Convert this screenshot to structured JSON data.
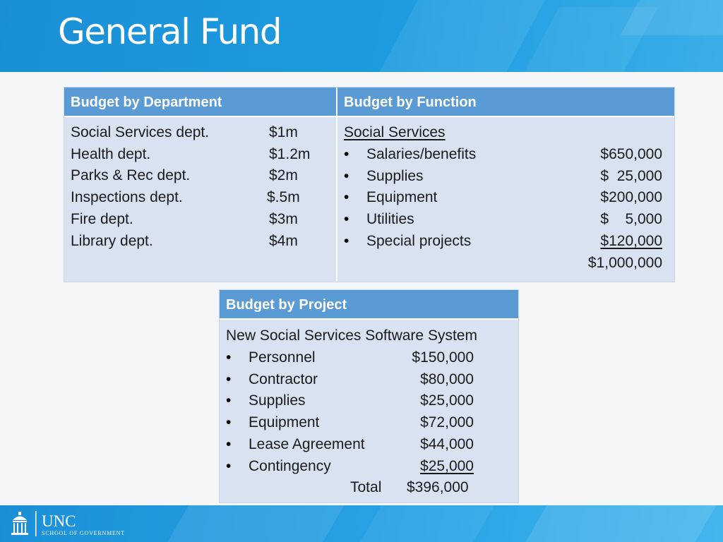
{
  "slide": {
    "title": "General Fund"
  },
  "department": {
    "header": "Budget by Department",
    "rows": [
      {
        "label": "Social Services dept.",
        "amount": "$1m"
      },
      {
        "label": "Health dept.",
        "amount": "$1.2m"
      },
      {
        "label": "Parks & Rec dept.",
        "amount": "$2m"
      },
      {
        "label": "Inspections dept.",
        "amount": "$.5m"
      },
      {
        "label": "Fire dept.",
        "amount": "$3m"
      },
      {
        "label": "Library dept.",
        "amount": "$4m"
      }
    ]
  },
  "function": {
    "header": "Budget by Function",
    "group": "Social Services",
    "bullet": "•",
    "rows": [
      {
        "label": "Salaries/benefits",
        "amount": "$650,000"
      },
      {
        "label": "Supplies",
        "amount": "$  25,000"
      },
      {
        "label": "Equipment",
        "amount": "$200,000"
      },
      {
        "label": "Utilities",
        "amount": "$    5,000"
      },
      {
        "label": "Special projects",
        "amount": "$120,000"
      }
    ],
    "total": "$1,000,000"
  },
  "project": {
    "header": "Budget by Project",
    "name": "New Social Services Software System",
    "bullet": "•",
    "rows": [
      {
        "label": "Personnel",
        "amount": "$150,000"
      },
      {
        "label": "Contractor",
        "amount": "$80,000"
      },
      {
        "label": "Supplies",
        "amount": "$25,000"
      },
      {
        "label": "Equipment",
        "amount": "$72,000"
      },
      {
        "label": "Lease Agreement",
        "amount": "$44,000"
      },
      {
        "label": "Contingency",
        "amount": "$25,000"
      }
    ],
    "total_label": "Total",
    "total": "$396,000"
  },
  "footer": {
    "logo_text": "UNC",
    "logo_subtext": "SCHOOL OF GOVERNMENT"
  },
  "colors": {
    "header_blue": "#1e9ce0",
    "table_header": "#5b9bd5",
    "table_body": "#d8e2f1",
    "text": "#1a1a1a"
  }
}
